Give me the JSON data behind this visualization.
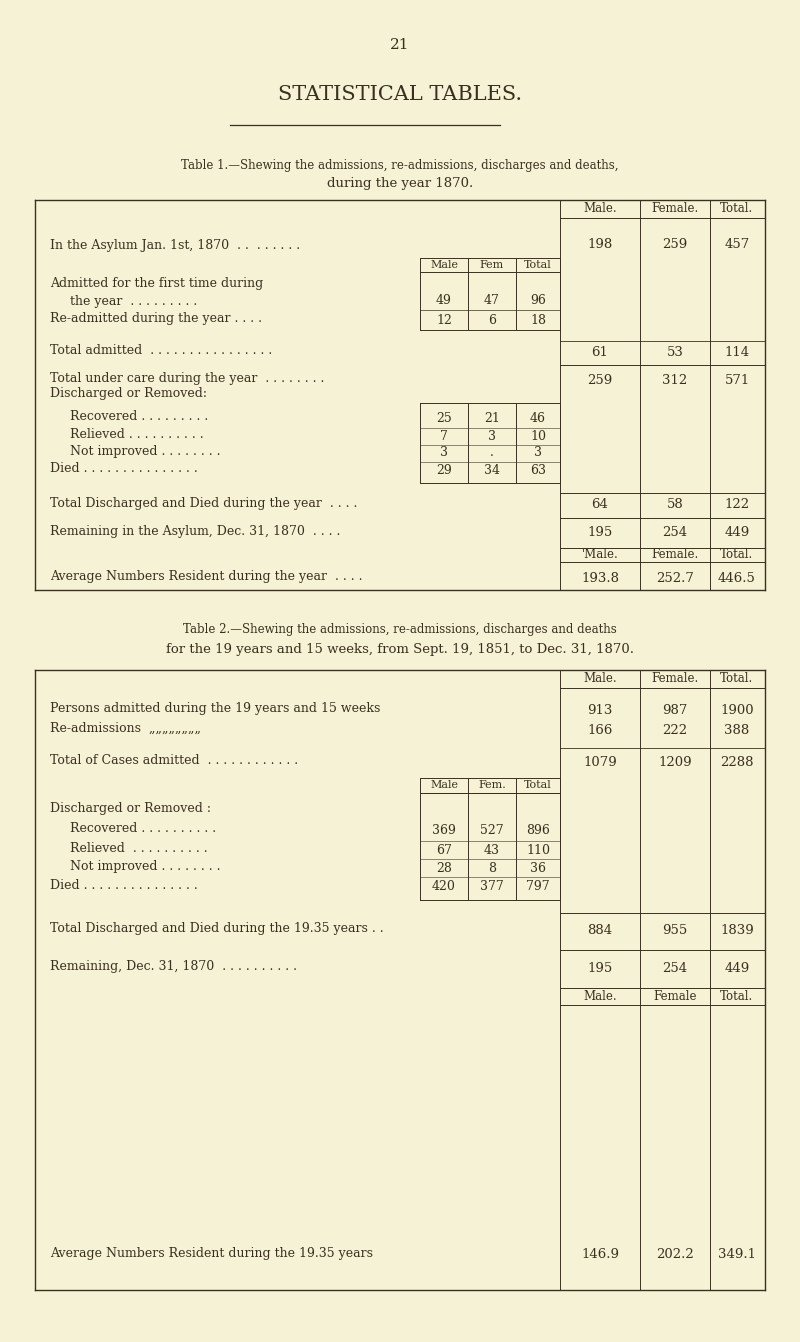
{
  "page_number": "21",
  "page_title": "STATISTICAL TABLES.",
  "bg_color": "#f5f2d5",
  "text_color": "#3a3020",
  "table1_title_line1": "Table 1.—Shewing the admissions, re-admissions, discharges and deaths,",
  "table1_title_line2": "during the year 1870.",
  "table2_title_line1": "Table 2.—Shewing the admissions, re-admissions, discharges and deaths",
  "table2_title_line2": "for the 19 years and 15 weeks, from Sept. 19, 1851, to Dec. 31, 1870.",
  "table1": {
    "in_asylum_jan": {
      "male": "198",
      "female": "259",
      "total": "457"
    },
    "admitted_first_time": {
      "male": "49",
      "female": "47",
      "total": "96"
    },
    "re_admitted": {
      "male": "12",
      "female": "6",
      "total": "18"
    },
    "total_admitted": {
      "male": "61",
      "female": "53",
      "total": "114"
    },
    "total_under_care": {
      "male": "259",
      "female": "312",
      "total": "571"
    },
    "recovered": {
      "male": "25",
      "female": "21",
      "total": "46"
    },
    "relieved": {
      "male": "7",
      "female": "3",
      "total": "10"
    },
    "not_improved": {
      "male": "3",
      "female": ".",
      "total": "3"
    },
    "died": {
      "male": "29",
      "female": "34",
      "total": "63"
    },
    "total_discharged_died": {
      "male": "64",
      "female": "58",
      "total": "122"
    },
    "remaining": {
      "male": "195",
      "female": "254",
      "total": "449"
    },
    "average_male": "193.8",
    "average_female": "252.7",
    "average_total": "446.5"
  },
  "table2": {
    "persons_admitted": {
      "male": "913",
      "female": "987",
      "total": "1900"
    },
    "re_admissions": {
      "male": "166",
      "female": "222",
      "total": "388"
    },
    "total_cases_admitted": {
      "male": "1079",
      "female": "1209",
      "total": "2288"
    },
    "recovered": {
      "male": "369",
      "female": "527",
      "total": "896"
    },
    "relieved": {
      "male": "67",
      "female": "43",
      "total": "110"
    },
    "not_improved": {
      "male": "28",
      "female": "8",
      "total": "36"
    },
    "died": {
      "male": "420",
      "female": "377",
      "total": "797"
    },
    "total_discharged_died": {
      "male": "884",
      "female": "955",
      "total": "1839"
    },
    "remaining": {
      "male": "195",
      "female": "254",
      "total": "449"
    },
    "average_male": "146.9",
    "average_female": "202.2",
    "average_total": "349.1"
  }
}
